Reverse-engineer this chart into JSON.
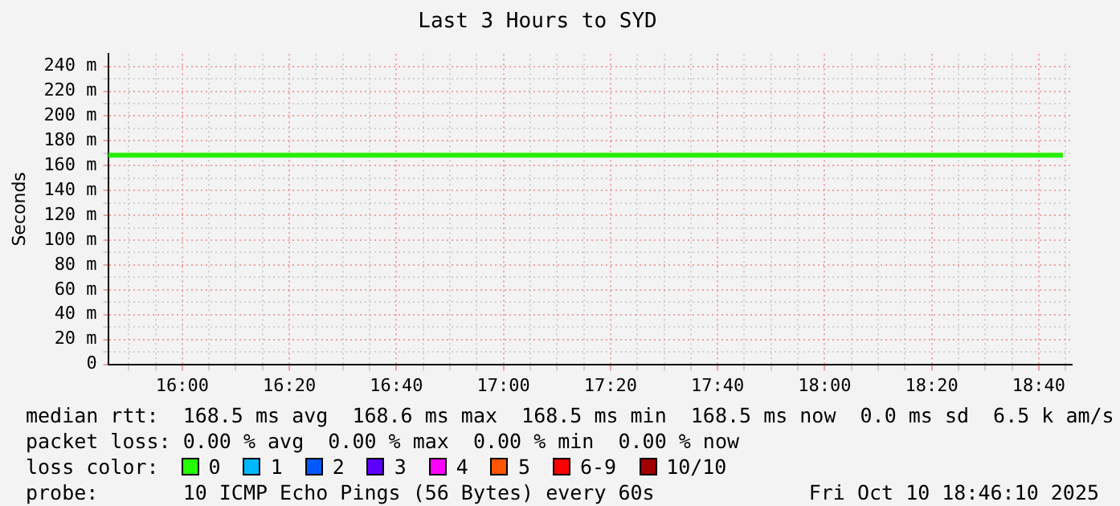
{
  "chart_data": {
    "type": "line",
    "title": "Last 3 Hours to SYD",
    "ylabel": "Seconds",
    "x": [
      15.7694,
      18.7417
    ],
    "series": [
      {
        "color": "#26ee00",
        "values": [
          168.5,
          168.5
        ]
      }
    ],
    "xlim": [
      15.7694,
      18.7694
    ],
    "xticks": [
      {
        "value": 15.8333,
        "label": null
      },
      {
        "value": 15.9167,
        "label": null
      },
      {
        "value": 16,
        "label": "16:00"
      },
      {
        "value": 16.0833,
        "label": null
      },
      {
        "value": 16.1667,
        "label": null
      },
      {
        "value": 16.25,
        "label": null
      },
      {
        "value": 16.3333,
        "label": "16:20"
      },
      {
        "value": 16.4167,
        "label": null
      },
      {
        "value": 16.5,
        "label": null
      },
      {
        "value": 16.5833,
        "label": null
      },
      {
        "value": 16.6667,
        "label": "16:40"
      },
      {
        "value": 16.75,
        "label": null
      },
      {
        "value": 16.8333,
        "label": null
      },
      {
        "value": 16.9167,
        "label": null
      },
      {
        "value": 17,
        "label": "17:00"
      },
      {
        "value": 17.0833,
        "label": null
      },
      {
        "value": 17.1667,
        "label": null
      },
      {
        "value": 17.25,
        "label": null
      },
      {
        "value": 17.3333,
        "label": "17:20"
      },
      {
        "value": 17.4167,
        "label": null
      },
      {
        "value": 17.5,
        "label": null
      },
      {
        "value": 17.5833,
        "label": null
      },
      {
        "value": 17.6667,
        "label": "17:40"
      },
      {
        "value": 17.75,
        "label": null
      },
      {
        "value": 17.8333,
        "label": null
      },
      {
        "value": 17.9167,
        "label": null
      },
      {
        "value": 18,
        "label": "18:00"
      },
      {
        "value": 18.0833,
        "label": null
      },
      {
        "value": 18.1667,
        "label": null
      },
      {
        "value": 18.25,
        "label": null
      },
      {
        "value": 18.3333,
        "label": "18:20"
      },
      {
        "value": 18.4167,
        "label": null
      },
      {
        "value": 18.5,
        "label": null
      },
      {
        "value": 18.5833,
        "label": null
      },
      {
        "value": 18.6667,
        "label": "18:40"
      },
      {
        "value": 18.75,
        "label": null
      }
    ],
    "ylim": [
      0,
      250
    ],
    "yticks": [
      0,
      {
        "value": 10,
        "label": null
      },
      {
        "value": 20,
        "label": "20 m"
      },
      {
        "value": 30,
        "label": null
      },
      {
        "value": 40,
        "label": "40 m"
      },
      {
        "value": 50,
        "label": null
      },
      {
        "value": 60,
        "label": "60 m"
      },
      {
        "value": 70,
        "label": null
      },
      {
        "value": 80,
        "label": "80 m"
      },
      {
        "value": 90,
        "label": null
      },
      {
        "value": 100,
        "label": "100 m"
      },
      {
        "value": 110,
        "label": null
      },
      {
        "value": 120,
        "label": "120 m"
      },
      {
        "value": 130,
        "label": null
      },
      {
        "value": 140,
        "label": "140 m"
      },
      {
        "value": 150,
        "label": null
      },
      {
        "value": 160,
        "label": "160 m"
      },
      {
        "value": 170,
        "label": null
      },
      {
        "value": 180,
        "label": "180 m"
      },
      {
        "value": 190,
        "label": null
      },
      {
        "value": 200,
        "label": "200 m"
      },
      {
        "value": 210,
        "label": null
      },
      {
        "value": 220,
        "label": "220 m"
      },
      {
        "value": 230,
        "label": null
      },
      {
        "value": 240,
        "label": "240 m"
      }
    ],
    "grid": true,
    "marker": "none",
    "line_style": "solid",
    "annotations": [
      "median rtt:  168.5 ms avg  168.6 ms max  168.5 ms min  168.5 ms now  0.0 ms sd  6.5 k am/s",
      "packet loss: 0.00 % avg  0.00 % max  0.00 % min  0.00 % now",
      "loss color:",
      "0",
      "1",
      "2",
      "3",
      "4",
      "5",
      "6-9",
      "10/10",
      "probe:       10 ICMP Echo Pings (56 Bytes) every 60s",
      "Fri Oct 10 18:46:10 2025"
    ]
  }
}
